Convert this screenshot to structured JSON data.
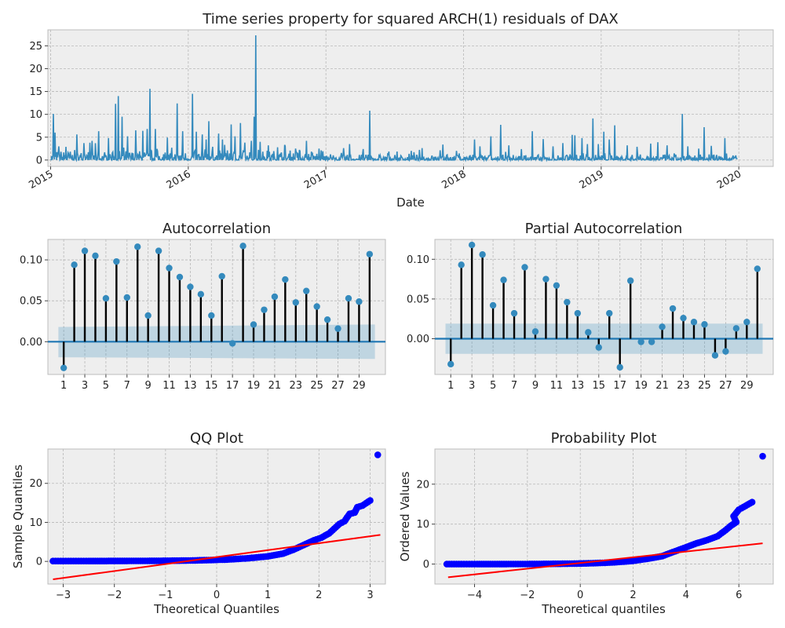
{
  "chart_data": [
    {
      "id": "ts",
      "type": "line",
      "title": "Time series property for squared ARCH(1) residuals of DAX",
      "xlabel": "Date",
      "ylabel": "",
      "xlim": [
        2014.98,
        2020.25
      ],
      "ylim": [
        -1.4,
        28.5
      ],
      "xticks": [
        2015,
        2016,
        2017,
        2018,
        2019,
        2020
      ],
      "xtick_labels": [
        "2015",
        "2016",
        "2017",
        "2018",
        "2019",
        "2020"
      ],
      "yticks": [
        0,
        5,
        10,
        15,
        20,
        25
      ],
      "ytick_labels": [
        "0",
        "5",
        "10",
        "15",
        "20",
        "25"
      ],
      "grid": true,
      "color": "#348abd",
      "spikes": [
        {
          "x": 2015.02,
          "y": 10.1
        },
        {
          "x": 2015.03,
          "y": 6.0
        },
        {
          "x": 2015.06,
          "y": 3.0
        },
        {
          "x": 2015.11,
          "y": 2.9
        },
        {
          "x": 2015.19,
          "y": 5.6
        },
        {
          "x": 2015.24,
          "y": 3.7
        },
        {
          "x": 2015.3,
          "y": 4.2
        },
        {
          "x": 2015.35,
          "y": 6.3
        },
        {
          "x": 2015.42,
          "y": 4.8
        },
        {
          "x": 2015.47,
          "y": 12.3
        },
        {
          "x": 2015.49,
          "y": 14.0
        },
        {
          "x": 2015.52,
          "y": 9.5
        },
        {
          "x": 2015.56,
          "y": 5.2
        },
        {
          "x": 2015.62,
          "y": 6.5
        },
        {
          "x": 2015.67,
          "y": 6.4
        },
        {
          "x": 2015.7,
          "y": 6.8
        },
        {
          "x": 2015.72,
          "y": 15.6
        },
        {
          "x": 2015.76,
          "y": 6.8
        },
        {
          "x": 2015.85,
          "y": 4.9
        },
        {
          "x": 2015.92,
          "y": 12.4
        },
        {
          "x": 2015.96,
          "y": 6.3
        },
        {
          "x": 2016.03,
          "y": 14.5
        },
        {
          "x": 2016.06,
          "y": 6.2
        },
        {
          "x": 2016.1,
          "y": 5.6
        },
        {
          "x": 2016.13,
          "y": 4.5
        },
        {
          "x": 2016.15,
          "y": 8.5
        },
        {
          "x": 2016.22,
          "y": 5.8
        },
        {
          "x": 2016.25,
          "y": 4.5
        },
        {
          "x": 2016.31,
          "y": 7.8
        },
        {
          "x": 2016.34,
          "y": 5.2
        },
        {
          "x": 2016.38,
          "y": 8.1
        },
        {
          "x": 2016.41,
          "y": 3.8
        },
        {
          "x": 2016.46,
          "y": 4.2
        },
        {
          "x": 2016.48,
          "y": 9.5
        },
        {
          "x": 2016.49,
          "y": 27.3
        },
        {
          "x": 2016.52,
          "y": 4.0
        },
        {
          "x": 2016.58,
          "y": 3.2
        },
        {
          "x": 2016.65,
          "y": 2.8
        },
        {
          "x": 2016.7,
          "y": 3.3
        },
        {
          "x": 2016.78,
          "y": 2.5
        },
        {
          "x": 2016.86,
          "y": 4.2
        },
        {
          "x": 2016.95,
          "y": 2.5
        },
        {
          "x": 2017.13,
          "y": 2.6
        },
        {
          "x": 2017.17,
          "y": 3.5
        },
        {
          "x": 2017.27,
          "y": 2.4
        },
        {
          "x": 2017.32,
          "y": 10.8
        },
        {
          "x": 2017.45,
          "y": 1.5
        },
        {
          "x": 2017.62,
          "y": 2.0
        },
        {
          "x": 2017.7,
          "y": 2.6
        },
        {
          "x": 2017.85,
          "y": 3.4
        },
        {
          "x": 2017.95,
          "y": 2.0
        },
        {
          "x": 2018.08,
          "y": 4.5
        },
        {
          "x": 2018.12,
          "y": 3.0
        },
        {
          "x": 2018.2,
          "y": 5.2
        },
        {
          "x": 2018.27,
          "y": 7.7
        },
        {
          "x": 2018.33,
          "y": 3.2
        },
        {
          "x": 2018.42,
          "y": 2.4
        },
        {
          "x": 2018.5,
          "y": 6.3
        },
        {
          "x": 2018.58,
          "y": 4.6
        },
        {
          "x": 2018.65,
          "y": 3.0
        },
        {
          "x": 2018.72,
          "y": 3.7
        },
        {
          "x": 2018.79,
          "y": 5.5
        },
        {
          "x": 2018.81,
          "y": 5.4
        },
        {
          "x": 2018.86,
          "y": 4.8
        },
        {
          "x": 2018.9,
          "y": 3.5
        },
        {
          "x": 2018.94,
          "y": 9.1
        },
        {
          "x": 2018.98,
          "y": 3.5
        },
        {
          "x": 2019.02,
          "y": 6.2
        },
        {
          "x": 2019.06,
          "y": 4.5
        },
        {
          "x": 2019.1,
          "y": 7.6
        },
        {
          "x": 2019.19,
          "y": 3.2
        },
        {
          "x": 2019.26,
          "y": 2.9
        },
        {
          "x": 2019.36,
          "y": 3.6
        },
        {
          "x": 2019.41,
          "y": 3.9
        },
        {
          "x": 2019.48,
          "y": 3.2
        },
        {
          "x": 2019.59,
          "y": 10.1
        },
        {
          "x": 2019.63,
          "y": 3.0
        },
        {
          "x": 2019.71,
          "y": 2.5
        },
        {
          "x": 2019.75,
          "y": 7.2
        },
        {
          "x": 2019.8,
          "y": 3.1
        },
        {
          "x": 2019.9,
          "y": 4.8
        },
        {
          "x": 2019.98,
          "y": 1.0
        }
      ]
    },
    {
      "id": "acf",
      "type": "bar",
      "title": "Autocorrelation",
      "xlim": [
        -0.5,
        31.5
      ],
      "ylim": [
        -0.04,
        0.125
      ],
      "xticks": [
        1,
        3,
        5,
        7,
        9,
        11,
        13,
        15,
        17,
        19,
        21,
        23,
        25,
        27,
        29
      ],
      "xtick_labels": [
        "1",
        "3",
        "5",
        "7",
        "9",
        "11",
        "13",
        "15",
        "17",
        "19",
        "21",
        "23",
        "25",
        "27",
        "29"
      ],
      "yticks": [
        0,
        0.05,
        0.1
      ],
      "ytick_labels": [
        "0.00",
        "0.05",
        "0.10"
      ],
      "grid": true,
      "lags": [
        1,
        2,
        3,
        4,
        5,
        6,
        7,
        8,
        9,
        10,
        11,
        12,
        13,
        14,
        15,
        16,
        17,
        18,
        19,
        20,
        21,
        22,
        23,
        24,
        25,
        26,
        27,
        28,
        29,
        30
      ],
      "values": [
        -0.032,
        0.094,
        0.111,
        0.105,
        0.053,
        0.098,
        0.054,
        0.116,
        0.032,
        0.111,
        0.09,
        0.079,
        0.067,
        0.058,
        0.032,
        0.08,
        -0.002,
        0.117,
        0.021,
        0.039,
        0.055,
        0.076,
        0.048,
        0.062,
        0.043,
        0.027,
        0.016,
        0.053,
        0.049,
        0.107
      ],
      "conf_band": {
        "start": [
          0.018,
          -0.019
        ],
        "end": [
          0.021,
          -0.021
        ]
      }
    },
    {
      "id": "pacf",
      "type": "bar",
      "title": "Partial Autocorrelation",
      "xlim": [
        -0.5,
        31.5
      ],
      "ylim": [
        -0.045,
        0.125
      ],
      "xticks": [
        1,
        3,
        5,
        7,
        9,
        11,
        13,
        15,
        17,
        19,
        21,
        23,
        25,
        27,
        29
      ],
      "xtick_labels": [
        "1",
        "3",
        "5",
        "7",
        "9",
        "11",
        "13",
        "15",
        "17",
        "19",
        "21",
        "23",
        "25",
        "27",
        "29"
      ],
      "yticks": [
        0,
        0.05,
        0.1
      ],
      "ytick_labels": [
        "0.00",
        "0.05",
        "0.10"
      ],
      "grid": true,
      "lags": [
        1,
        2,
        3,
        4,
        5,
        6,
        7,
        8,
        9,
        10,
        11,
        12,
        13,
        14,
        15,
        16,
        17,
        18,
        19,
        20,
        21,
        22,
        23,
        24,
        25,
        26,
        27,
        28,
        29,
        30
      ],
      "values": [
        -0.032,
        0.093,
        0.118,
        0.106,
        0.042,
        0.074,
        0.032,
        0.09,
        0.009,
        0.075,
        0.067,
        0.046,
        0.032,
        0.008,
        -0.011,
        0.032,
        -0.036,
        0.073,
        -0.004,
        -0.004,
        0.015,
        0.038,
        0.026,
        0.021,
        0.018,
        -0.021,
        -0.016,
        0.013,
        0.021,
        0.088
      ],
      "conf_band": {
        "start": [
          0.019,
          -0.019
        ],
        "end": [
          0.019,
          -0.019
        ]
      }
    },
    {
      "id": "qq",
      "type": "scatter",
      "title": "QQ Plot",
      "xlabel": "Theoretical Quantiles",
      "ylabel": "Sample Quantiles",
      "xlim": [
        -3.3,
        3.3
      ],
      "ylim": [
        -5.8,
        28.8
      ],
      "xticks": [
        -3,
        -2,
        -1,
        0,
        1,
        2,
        3
      ],
      "xtick_labels": [
        "−3",
        "−2",
        "−1",
        "0",
        "1",
        "2",
        "3"
      ],
      "yticks": [
        0,
        10,
        20
      ],
      "ytick_labels": [
        "0",
        "10",
        "20"
      ],
      "grid": true,
      "point_color": "#0000ff",
      "line_color": "#ff0000",
      "line": [
        [
          -3.2,
          -4.6
        ],
        [
          3.2,
          6.8
        ]
      ],
      "points": [
        [
          -3.2,
          0.1
        ],
        [
          -3.0,
          0.1
        ],
        [
          -2.85,
          0.1
        ],
        [
          -2.7,
          0.1
        ],
        [
          -2.5,
          0.1
        ],
        [
          -2.2,
          0.1
        ],
        [
          -1.8,
          0.12
        ],
        [
          -1.4,
          0.14
        ],
        [
          -1.0,
          0.17
        ],
        [
          -0.6,
          0.22
        ],
        [
          -0.2,
          0.32
        ],
        [
          0.2,
          0.48
        ],
        [
          0.6,
          0.8
        ],
        [
          1.0,
          1.3
        ],
        [
          1.3,
          2.0
        ],
        [
          1.5,
          3.0
        ],
        [
          1.7,
          4.2
        ],
        [
          1.9,
          5.4
        ],
        [
          2.05,
          6.1
        ],
        [
          2.2,
          7.2
        ],
        [
          2.3,
          8.4
        ],
        [
          2.4,
          9.6
        ],
        [
          2.5,
          10.3
        ],
        [
          2.6,
          12.2
        ],
        [
          2.7,
          12.5
        ],
        [
          2.75,
          13.9
        ],
        [
          2.85,
          14.3
        ],
        [
          3.0,
          15.6
        ],
        [
          3.15,
          27.3
        ]
      ]
    },
    {
      "id": "prob",
      "type": "scatter",
      "title": "Probability Plot",
      "xlabel": "Theoretical quantiles",
      "ylabel": "Ordered Values",
      "xlim": [
        -5.5,
        7.3
      ],
      "ylim": [
        -5.0,
        28.8
      ],
      "xticks": [
        -4,
        -2,
        0,
        2,
        4,
        6
      ],
      "xtick_labels": [
        "−4",
        "−2",
        "0",
        "2",
        "4",
        "6"
      ],
      "yticks": [
        0,
        10,
        20
      ],
      "ytick_labels": [
        "0",
        "10",
        "20"
      ],
      "grid": true,
      "point_color": "#0000ff",
      "line_color": "#ff0000",
      "line": [
        [
          -5.0,
          -3.3
        ],
        [
          6.9,
          5.2
        ]
      ],
      "points": [
        [
          -5.05,
          0.0
        ],
        [
          -4.5,
          0.0
        ],
        [
          -4.2,
          0.0
        ],
        [
          -3.9,
          0.0
        ],
        [
          -3.4,
          0.0
        ],
        [
          -2.8,
          0.0
        ],
        [
          -2.0,
          0.02
        ],
        [
          -1.2,
          0.05
        ],
        [
          -0.4,
          0.1
        ],
        [
          0.4,
          0.2
        ],
        [
          1.2,
          0.4
        ],
        [
          2.0,
          0.8
        ],
        [
          2.6,
          1.4
        ],
        [
          3.1,
          2.0
        ],
        [
          3.5,
          3.0
        ],
        [
          4.0,
          4.2
        ],
        [
          4.4,
          5.2
        ],
        [
          4.8,
          6.0
        ],
        [
          5.2,
          7.0
        ],
        [
          5.5,
          8.5
        ],
        [
          5.7,
          9.6
        ],
        [
          5.9,
          10.5
        ],
        [
          5.8,
          12.0
        ],
        [
          6.0,
          13.6
        ],
        [
          6.1,
          14.0
        ],
        [
          6.5,
          15.5
        ],
        [
          6.9,
          27.0
        ]
      ]
    }
  ]
}
